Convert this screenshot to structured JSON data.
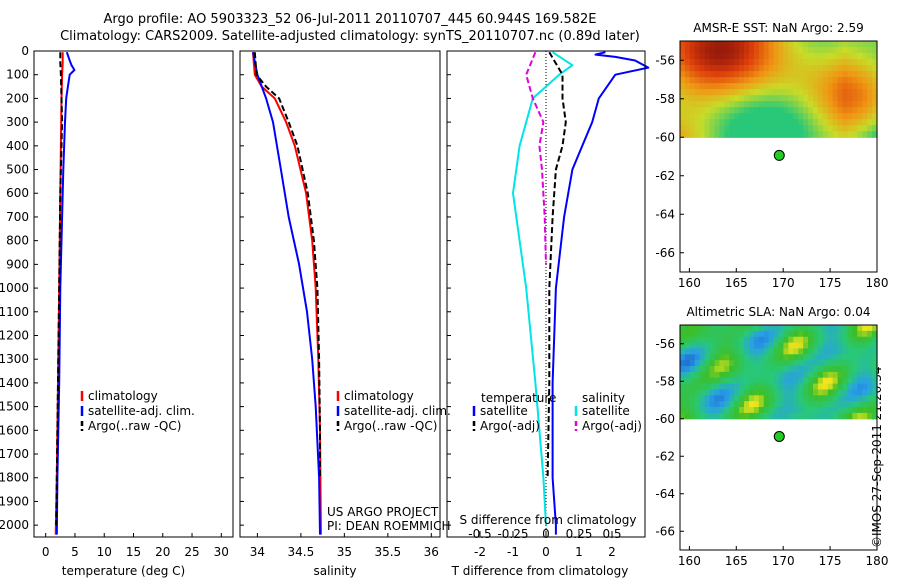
{
  "header": {
    "line1": "Argo profile: AO 5903323_52 06-Jul-2011 20110707_445 60.944S 169.582E",
    "line2": "Climatology: CARS2009. Satellite-adjusted climatology: synTS_20110707.nc (0.89d later)"
  },
  "stamp": "©IMOS 27-Sep-2011 21:20:34",
  "colors": {
    "climatology": "#ff0000",
    "satellite": "#0000ff",
    "argo": "#000000",
    "salinity_satellite": "#00e5e5",
    "salinity_argo": "#e000e0",
    "marker": "#22cc22"
  },
  "chart_data": [
    {
      "type": "line",
      "id": "temperature",
      "xlabel": "temperature (deg C)",
      "xlim": [
        -2,
        32
      ],
      "ylim": [
        0,
        2050
      ],
      "xticks": [
        0,
        5,
        10,
        15,
        20,
        25,
        30
      ],
      "yticks": [
        0,
        100,
        200,
        300,
        400,
        500,
        600,
        700,
        800,
        900,
        1000,
        1100,
        1200,
        1300,
        1400,
        1500,
        1600,
        1700,
        1800,
        1900,
        2000
      ],
      "legend": [
        "climatology",
        "satellite-adj. clim.",
        "Argo(..raw -QC)"
      ],
      "legend_loc": "center",
      "series": [
        {
          "name": "climatology",
          "color": "#ff0000",
          "dash": "",
          "depth": [
            5,
            50,
            100,
            200,
            400,
            600,
            1000,
            1400,
            1800,
            2040
          ],
          "values": [
            2.9,
            2.9,
            2.8,
            2.7,
            2.6,
            2.5,
            2.3,
            2.1,
            1.9,
            1.7
          ]
        },
        {
          "name": "satellite-adj. clim.",
          "color": "#0000ff",
          "dash": "",
          "depth": [
            5,
            40,
            60,
            80,
            100,
            150,
            200,
            300,
            500,
            700,
            1000,
            1400,
            1800,
            2040
          ],
          "values": [
            3.6,
            4.1,
            4.4,
            4.9,
            4.1,
            3.8,
            3.5,
            3.3,
            3.0,
            2.8,
            2.5,
            2.3,
            2.0,
            1.9
          ]
        },
        {
          "name": "Argo(..raw -QC)",
          "color": "#000000",
          "dash": "6,3",
          "depth": [
            5,
            50,
            100,
            200,
            300,
            400,
            600,
            1000,
            1400,
            1800,
            2000
          ],
          "values": [
            2.5,
            2.5,
            2.6,
            2.7,
            2.8,
            2.7,
            2.5,
            2.3,
            2.1,
            1.9,
            1.8
          ]
        }
      ]
    },
    {
      "type": "line",
      "id": "salinity",
      "xlabel": "salinity",
      "xlim": [
        33.8,
        36.1
      ],
      "ylim": [
        0,
        2050
      ],
      "xticks": [
        34,
        34.5,
        35,
        35.5,
        36
      ],
      "legend": [
        "climatology",
        "satellite-adj. clim.",
        "Argo(..raw -QC)"
      ],
      "legend_loc": "center",
      "annotation": [
        "US ARGO PROJECT",
        "PI: DEAN ROEMMICH"
      ],
      "series": [
        {
          "name": "climatology",
          "color": "#ff0000",
          "dash": "",
          "depth": [
            5,
            100,
            150,
            200,
            300,
            400,
            600,
            800,
            1000,
            1300,
            1600,
            2040
          ],
          "values": [
            33.95,
            33.97,
            34.05,
            34.2,
            34.33,
            34.43,
            34.56,
            34.63,
            34.67,
            34.7,
            34.72,
            34.73
          ]
        },
        {
          "name": "satellite-adj. clim.",
          "color": "#0000ff",
          "dash": "",
          "depth": [
            5,
            100,
            200,
            300,
            500,
            700,
            900,
            1100,
            1300,
            1500,
            1800,
            2040
          ],
          "values": [
            33.95,
            34.0,
            34.1,
            34.18,
            34.27,
            34.36,
            34.48,
            34.57,
            34.63,
            34.67,
            34.71,
            34.72
          ]
        },
        {
          "name": "Argo(..raw -QC)",
          "color": "#000000",
          "dash": "6,3",
          "depth": [
            5,
            100,
            150,
            200,
            300,
            400,
            600,
            800,
            1000,
            1300,
            1600,
            1800
          ],
          "values": [
            33.97,
            33.99,
            34.1,
            34.25,
            34.36,
            34.46,
            34.58,
            34.65,
            34.69,
            34.71,
            34.72,
            34.72
          ]
        }
      ]
    },
    {
      "type": "line",
      "id": "difference",
      "xlabel_t": "T difference from climatology",
      "xlabel_s": "S difference from climatology",
      "xlim_t": [
        -3,
        3
      ],
      "xticks_t": [
        -2,
        -1,
        0,
        1,
        2
      ],
      "xlim_s": [
        -0.75,
        0.75
      ],
      "xticks_s": [
        "-0.5",
        "-0.25",
        "0",
        "0.25",
        "0.5"
      ],
      "ylim": [
        0,
        2050
      ],
      "legend_t_title": "temperature",
      "legend_s_title": "salinity",
      "legend_t": [
        "satellite",
        "Argo(-adj)"
      ],
      "legend_s": [
        "satellite",
        "Argo(-adj)"
      ],
      "series_t": [
        {
          "name": "satellite",
          "color": "#0000ff",
          "dash": "",
          "depth": [
            5,
            15,
            25,
            40,
            70,
            100,
            200,
            300,
            400,
            500,
            700,
            1000,
            1400,
            1800,
            2000,
            2040
          ],
          "values": [
            1.8,
            1.5,
            2.1,
            2.7,
            3.1,
            2.1,
            1.6,
            1.4,
            1.1,
            0.8,
            0.55,
            0.3,
            0.2,
            0.2,
            0.3,
            0.3
          ]
        },
        {
          "name": "Argo(-adj)",
          "color": "#000000",
          "dash": "6,3",
          "depth": [
            5,
            100,
            200,
            300,
            400,
            500,
            700,
            1000,
            1400,
            1800
          ],
          "values": [
            0.1,
            0.5,
            0.5,
            0.6,
            0.5,
            0.3,
            0.2,
            0.1,
            0.1,
            0.05
          ]
        }
      ],
      "series_s": [
        {
          "name": "satellite",
          "color": "#00e5e5",
          "dash": "",
          "depth": [
            5,
            60,
            100,
            200,
            300,
            400,
            600,
            800,
            1000,
            1400,
            1800,
            2000
          ],
          "values": [
            0.05,
            0.2,
            0.1,
            -0.1,
            -0.15,
            -0.2,
            -0.25,
            -0.2,
            -0.15,
            -0.08,
            -0.02,
            0.0
          ]
        },
        {
          "name": "Argo(-adj)",
          "color": "#e000e0",
          "dash": "6,3",
          "depth": [
            5,
            100,
            200,
            300,
            400,
            500,
            700,
            900
          ],
          "values": [
            -0.08,
            -0.15,
            -0.1,
            -0.02,
            -0.05,
            -0.03,
            -0.01,
            0.0
          ]
        }
      ]
    },
    {
      "type": "heatmap",
      "id": "sst",
      "title": "AMSR-E SST: NaN Argo: 2.59",
      "xlim": [
        159,
        180
      ],
      "ylim": [
        -67,
        -55
      ],
      "xticks": [
        160,
        165,
        170,
        175,
        180
      ],
      "yticks": [
        -56,
        -58,
        -60,
        -62,
        -64,
        -66
      ],
      "data_lat_min": -60,
      "marker": {
        "lon": 169.582,
        "lat": -60.944
      },
      "palette": "hot-orange"
    },
    {
      "type": "heatmap",
      "id": "sla",
      "title": "Altimetric SLA: NaN Argo: 0.04",
      "xlim": [
        159,
        180
      ],
      "ylim": [
        -67,
        -55
      ],
      "xticks": [
        160,
        165,
        170,
        175,
        180
      ],
      "yticks": [
        -56,
        -58,
        -60,
        -62,
        -64,
        -66
      ],
      "data_lat_min": -60,
      "marker": {
        "lon": 169.582,
        "lat": -60.944
      },
      "palette": "blue-green-yellow"
    }
  ]
}
